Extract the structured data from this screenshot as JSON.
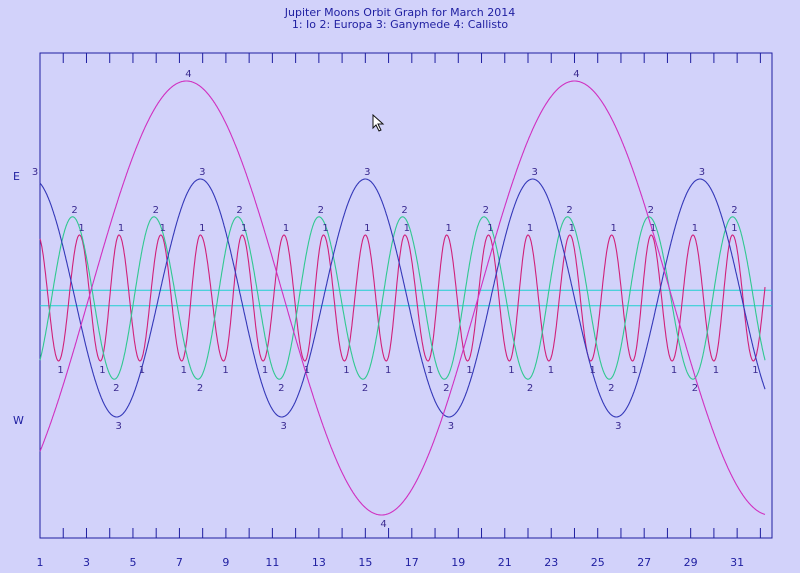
{
  "window": {
    "title_line1": "Jupiter Moons Orbit Graph for March 2014",
    "title_line2": "1: Io  2: Europa  3: Ganymede  4: Callisto",
    "label_east": "E",
    "label_west": "W"
  },
  "colors": {
    "background": "#d2d2fa",
    "frame": "#1e1ea0",
    "jupiter_band": "#20d0d0",
    "io": "#d0207a",
    "europa": "#30c890",
    "ganymede": "#3438b8",
    "callisto": "#d030c0"
  },
  "chart_data": {
    "type": "line",
    "title": "Jupiter Moons Orbit Graph for March 2014",
    "subtitle": "1: Io  2: Europa  3: Ganymede  4: Callisto",
    "xlabel": "",
    "ylabel": "",
    "x_ticks": [
      "1",
      "3",
      "5",
      "7",
      "9",
      "11",
      "13",
      "15",
      "17",
      "19",
      "21",
      "23",
      "25",
      "27",
      "29",
      "31"
    ],
    "xlim": [
      1,
      32.5
    ],
    "ylim": [
      -1,
      1
    ],
    "y_side_labels": {
      "top": "E",
      "bottom": "W"
    },
    "jupiter_band": [
      -0.055,
      0.055
    ],
    "series": [
      {
        "name": "Io",
        "label": "1",
        "color": "#d0207a",
        "peaks_east": [
          [
            2.7,
            0.45
          ],
          [
            4.4,
            0.45
          ],
          [
            6.2,
            0.45
          ],
          [
            7.9,
            0.45
          ],
          [
            9.7,
            0.45
          ],
          [
            11.5,
            0.45
          ],
          [
            13.2,
            0.45
          ],
          [
            15.0,
            0.45
          ],
          [
            16.7,
            0.45
          ],
          [
            18.5,
            0.45
          ],
          [
            20.3,
            0.45
          ],
          [
            22.0,
            0.45
          ],
          [
            23.8,
            0.45
          ],
          [
            25.6,
            0.45
          ],
          [
            27.3,
            0.45
          ],
          [
            29.1,
            0.45
          ],
          [
            30.8,
            0.45
          ]
        ],
        "peaks_west": [
          [
            1.8,
            -0.45
          ],
          [
            3.6,
            -0.45
          ],
          [
            5.3,
            -0.45
          ],
          [
            7.1,
            -0.45
          ],
          [
            8.9,
            -0.45
          ],
          [
            10.6,
            -0.45
          ],
          [
            12.4,
            -0.45
          ],
          [
            14.1,
            -0.45
          ],
          [
            15.9,
            -0.45
          ],
          [
            17.7,
            -0.45
          ],
          [
            19.4,
            -0.45
          ],
          [
            21.2,
            -0.45
          ],
          [
            22.9,
            -0.45
          ],
          [
            24.7,
            -0.45
          ],
          [
            26.5,
            -0.45
          ],
          [
            28.2,
            -0.45
          ],
          [
            30.0,
            -0.45
          ],
          [
            31.7,
            -0.45
          ]
        ]
      },
      {
        "name": "Europa",
        "label": "2",
        "color": "#30c890",
        "peaks_east": [
          [
            2.4,
            0.58
          ],
          [
            5.9,
            0.58
          ],
          [
            9.5,
            0.58
          ],
          [
            13.0,
            0.58
          ],
          [
            16.6,
            0.58
          ],
          [
            20.1,
            0.58
          ],
          [
            23.7,
            0.58
          ],
          [
            27.2,
            0.58
          ],
          [
            30.8,
            0.58
          ]
        ],
        "peaks_west": [
          [
            4.2,
            -0.58
          ],
          [
            7.8,
            -0.58
          ],
          [
            11.3,
            -0.58
          ],
          [
            14.9,
            -0.58
          ],
          [
            18.4,
            -0.58
          ],
          [
            22.0,
            -0.58
          ],
          [
            25.5,
            -0.58
          ],
          [
            29.1,
            -0.58
          ]
        ]
      },
      {
        "name": "Ganymede",
        "label": "3",
        "color": "#3438b8",
        "peaks_east": [
          [
            0.7,
            0.85
          ],
          [
            7.9,
            0.85
          ],
          [
            15.0,
            0.85
          ],
          [
            22.2,
            0.85
          ],
          [
            29.4,
            0.85
          ]
        ],
        "peaks_west": [
          [
            4.3,
            -0.85
          ],
          [
            11.4,
            -0.85
          ],
          [
            18.6,
            -0.85
          ],
          [
            25.8,
            -0.85
          ]
        ]
      },
      {
        "name": "Callisto",
        "label": "4",
        "color": "#d030c0",
        "peaks_east": [
          [
            7.3,
            1.55
          ],
          [
            24.0,
            1.55
          ]
        ],
        "peaks_west": [
          [
            15.7,
            -1.55
          ]
        ]
      }
    ]
  }
}
